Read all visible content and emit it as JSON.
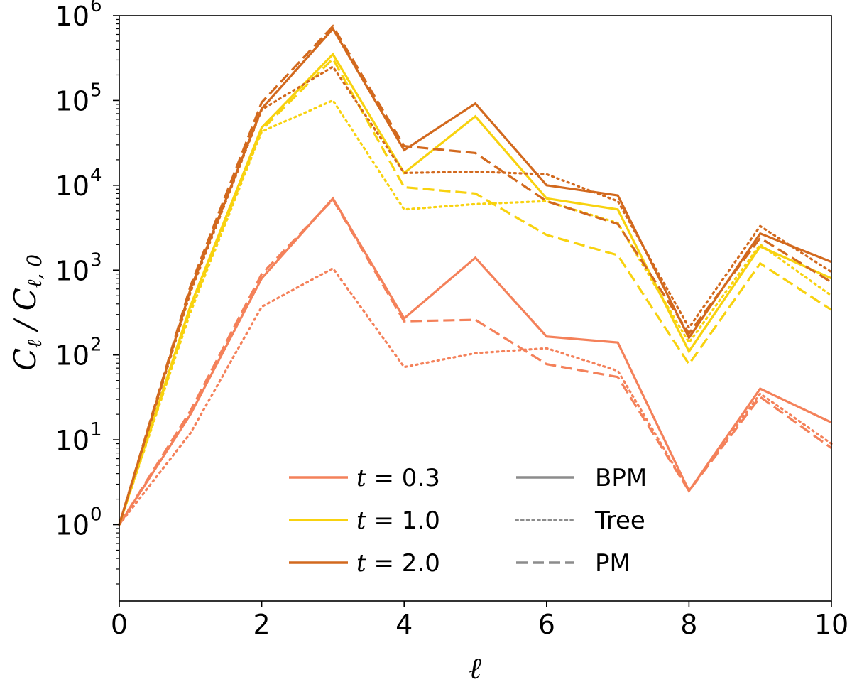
{
  "chart_data": {
    "type": "line",
    "title": "",
    "xlabel": "ℓ",
    "ylabel": {
      "main": "C",
      "main_sub": "ℓ",
      "denom": "C",
      "denom_sub": "ℓ, 0"
    },
    "yscale": "log",
    "xlim": [
      0,
      10
    ],
    "ylim_log10": [
      -0.9,
      6.0
    ],
    "x_ticks": [
      0,
      2,
      4,
      6,
      8,
      10
    ],
    "y_ticks": [
      {
        "base": "10",
        "exp": "0",
        "log": 0
      },
      {
        "base": "10",
        "exp": "1",
        "log": 1
      },
      {
        "base": "10",
        "exp": "2",
        "log": 2
      },
      {
        "base": "10",
        "exp": "3",
        "log": 3
      },
      {
        "base": "10",
        "exp": "4",
        "log": 4
      },
      {
        "base": "10",
        "exp": "5",
        "log": 5
      },
      {
        "base": "10",
        "exp": "6",
        "log": 6
      }
    ],
    "x": [
      0,
      1,
      2,
      3,
      4,
      5,
      6,
      7,
      8,
      9,
      10
    ],
    "colors": {
      "t0.3": "#f4815a",
      "t1.0": "#f8d20f",
      "t2.0": "#d2691e",
      "gray": "#8c8c8c"
    },
    "series": [
      {
        "name": "t=0.3 BPM",
        "time": "t0.3",
        "method": "BPM",
        "values": [
          1,
          20,
          800,
          7000,
          270,
          1400,
          165,
          140,
          2.5,
          40,
          16
        ]
      },
      {
        "name": "t=0.3 Tree",
        "time": "t0.3",
        "method": "Tree",
        "values": [
          1,
          12,
          370,
          1050,
          72,
          105,
          120,
          65,
          2.5,
          35,
          9
        ]
      },
      {
        "name": "t=0.3 PM",
        "time": "t0.3",
        "method": "PM",
        "values": [
          1,
          22,
          900,
          6800,
          250,
          260,
          78,
          55,
          2.5,
          32,
          8
        ]
      },
      {
        "name": "t=1.0 BPM",
        "time": "t1.0",
        "method": "BPM",
        "values": [
          1,
          380,
          48000,
          350000,
          14000,
          65000,
          7000,
          5200,
          110,
          1900,
          800
        ]
      },
      {
        "name": "t=1.0 Tree",
        "time": "t1.0",
        "method": "Tree",
        "values": [
          1,
          320,
          43000,
          100000,
          5200,
          6000,
          6500,
          3600,
          140,
          2000,
          500
        ]
      },
      {
        "name": "t=1.0 PM",
        "time": "t1.0",
        "method": "PM",
        "values": [
          1,
          350,
          45000,
          310000,
          9500,
          8000,
          2600,
          1500,
          78,
          1200,
          340
        ]
      },
      {
        "name": "t=2.0 BPM",
        "time": "t2.0",
        "method": "BPM",
        "values": [
          1,
          600,
          80000,
          700000,
          26000,
          92000,
          10000,
          7600,
          160,
          2700,
          1250
        ]
      },
      {
        "name": "t=2.0 Tree",
        "time": "t2.0",
        "method": "Tree",
        "values": [
          1,
          550,
          78000,
          250000,
          14000,
          14500,
          13500,
          6500,
          210,
          3300,
          950
        ]
      },
      {
        "name": "t=2.0 PM",
        "time": "t2.0",
        "method": "PM",
        "values": [
          1,
          650,
          95000,
          750000,
          29000,
          24000,
          6500,
          3500,
          180,
          2400,
          720
        ]
      }
    ],
    "legend": {
      "placement": "bottom-center",
      "time_entries": [
        {
          "key": "t0.3",
          "var": "t",
          "label": " = 0.3"
        },
        {
          "key": "t1.0",
          "var": "t",
          "label": " = 1.0"
        },
        {
          "key": "t2.0",
          "var": "t",
          "label": " = 2.0"
        }
      ],
      "method_entries": [
        {
          "style": "solid",
          "label": "BPM"
        },
        {
          "style": "dotted",
          "label": "Tree"
        },
        {
          "style": "dashed",
          "label": "PM"
        }
      ]
    }
  }
}
